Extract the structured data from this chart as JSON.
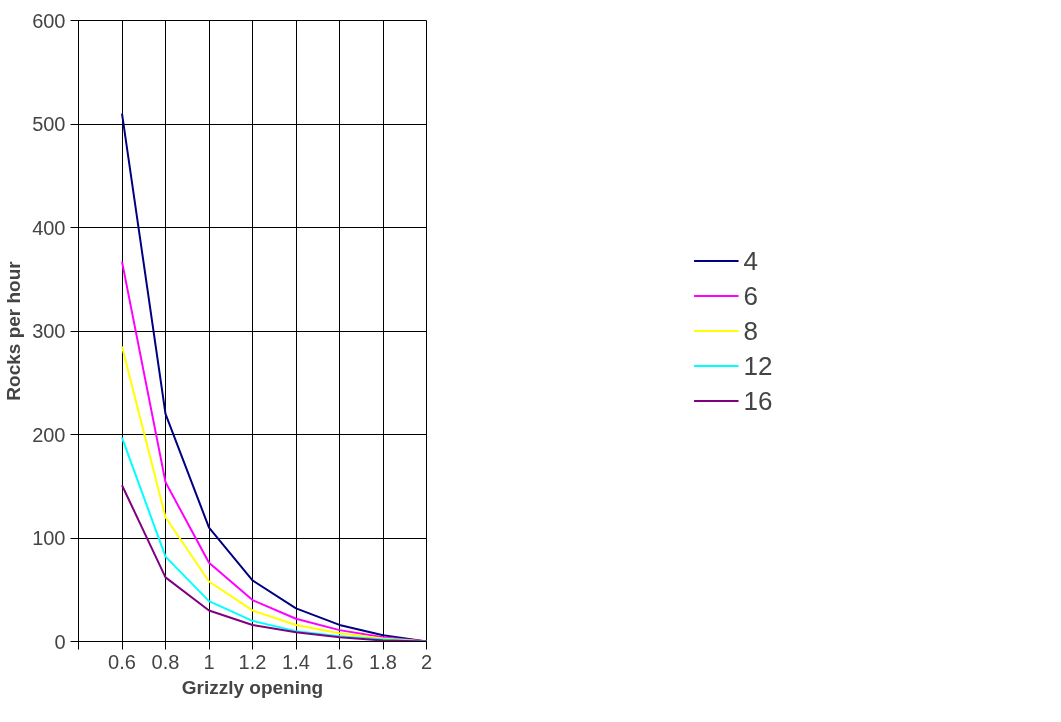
{
  "chart_data": {
    "type": "line",
    "xlabel": "Grizzly opening",
    "ylabel": "Rocks per hour",
    "x": [
      0.6,
      0.8,
      1,
      1.2,
      1.4,
      1.6,
      1.8,
      2
    ],
    "series": [
      {
        "name": "4",
        "color": "#000080",
        "values": [
          510,
          220,
          110,
          59,
          32,
          16,
          6,
          0
        ]
      },
      {
        "name": "6",
        "color": "#ff00ff",
        "values": [
          367,
          154,
          76,
          40,
          22,
          11,
          4,
          0
        ]
      },
      {
        "name": "8",
        "color": "#ffff00",
        "values": [
          285,
          120,
          58,
          30,
          16,
          8,
          3,
          0
        ]
      },
      {
        "name": "12",
        "color": "#00ffff",
        "values": [
          197,
          82,
          39,
          20,
          10,
          5,
          2,
          0
        ]
      },
      {
        "name": "16",
        "color": "#800080",
        "values": [
          151,
          62,
          30,
          16,
          9,
          4,
          1,
          0
        ]
      }
    ],
    "xlim": [
      0.4,
      2
    ],
    "xticks": [
      {
        "value": 0.4,
        "label": null
      },
      0.6,
      0.8,
      1,
      1.2,
      1.4,
      1.6,
      1.8,
      2
    ],
    "ylim": [
      0,
      600
    ],
    "yticks": [
      0,
      100,
      200,
      300,
      400,
      500,
      600
    ],
    "grid": true,
    "legend": "right",
    "marker": "none",
    "line_style": "solid"
  }
}
